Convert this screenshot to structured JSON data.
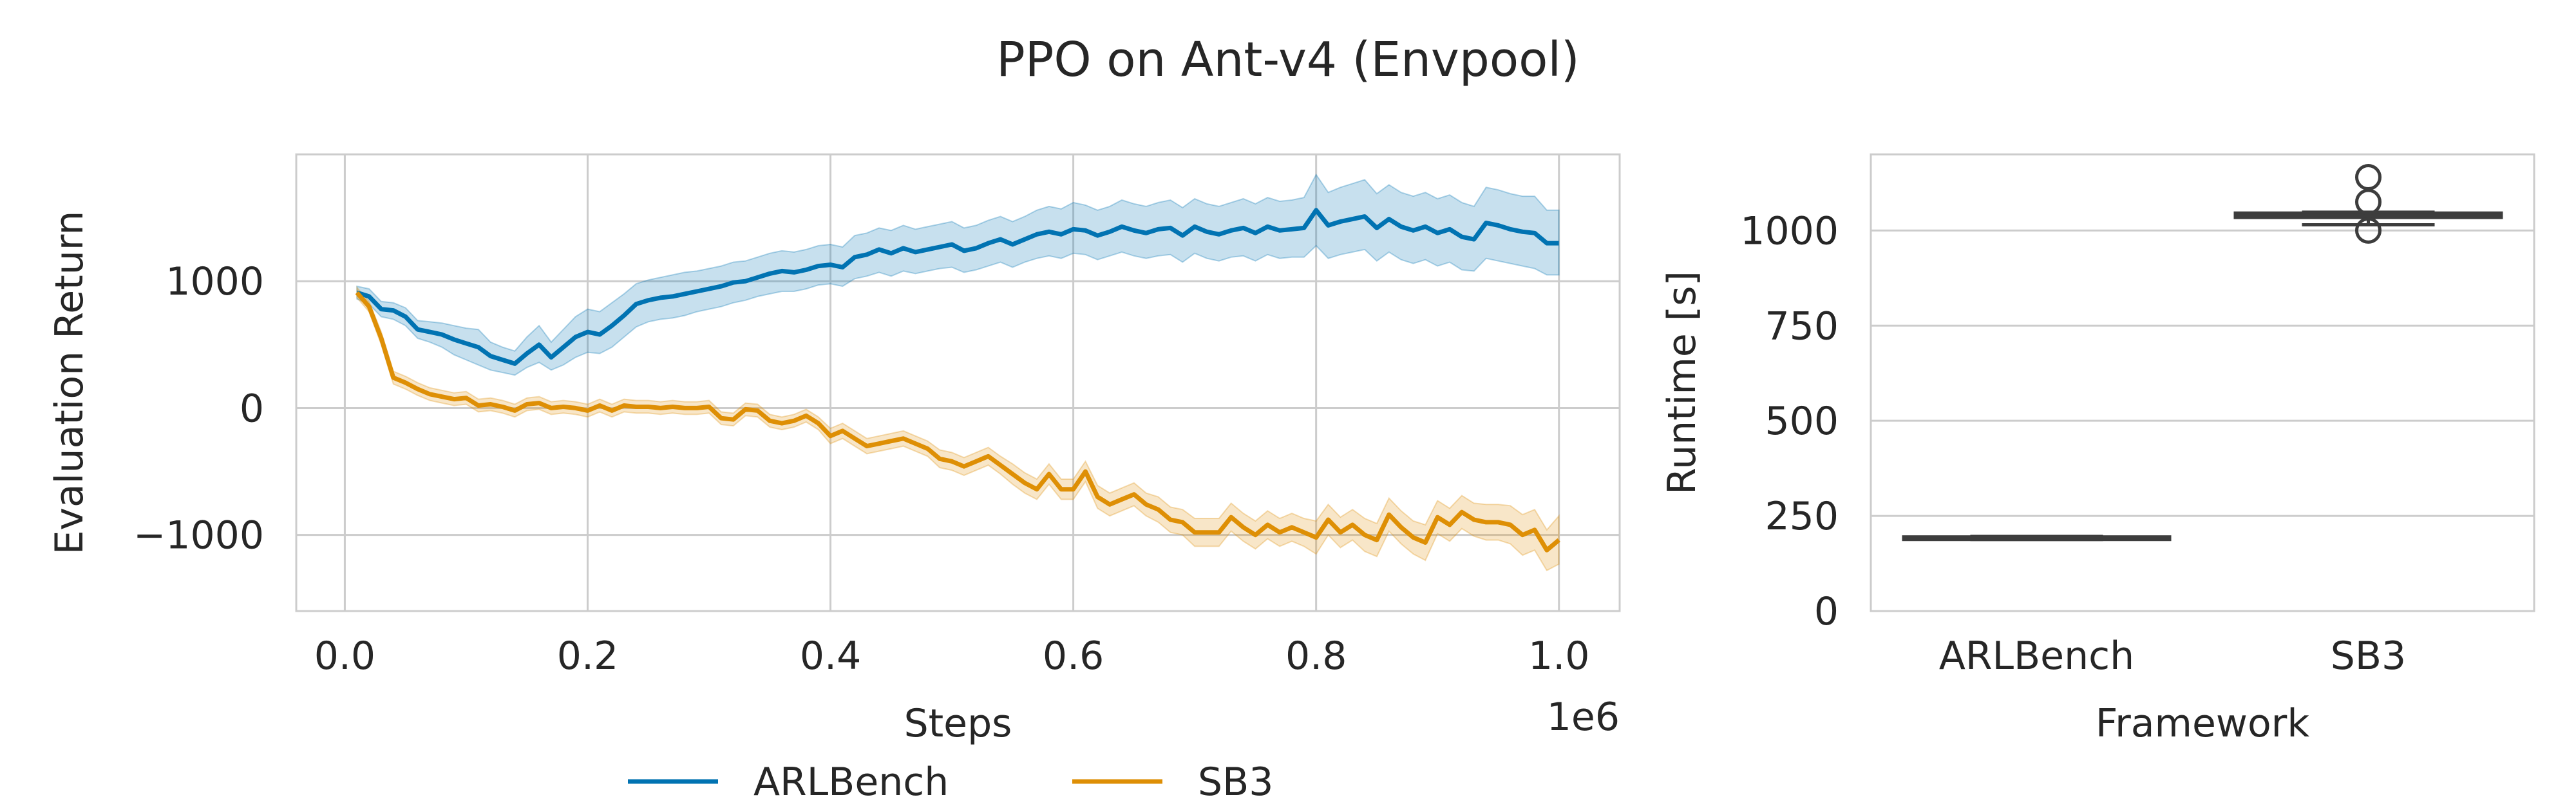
{
  "title": "PPO on Ant-v4 (Envpool)",
  "colors": {
    "ARLBench": "#0173b2",
    "SB3": "#de8f05",
    "grid": "#cccccc",
    "spine": "#cccccc",
    "box": "#3d3d3d"
  },
  "legend": {
    "placement": "bottom-center",
    "entries": [
      "ARLBench",
      "SB3"
    ]
  },
  "chart_data": [
    {
      "type": "line",
      "xlabel": "Steps",
      "x_offset_label": "1e6",
      "ylabel": "Evaluation Return",
      "xlim": [
        -0.04,
        1.05
      ],
      "ylim": [
        -1600,
        2000
      ],
      "xticks": [
        0.0,
        0.2,
        0.4,
        0.6,
        0.8,
        1.0
      ],
      "xtick_labels": [
        "0.0",
        "0.2",
        "0.4",
        "0.6",
        "0.8",
        "1.0"
      ],
      "yticks": [
        -1000,
        0,
        1000
      ],
      "ytick_labels": [
        "−1000",
        "0",
        "1000"
      ],
      "grid": true,
      "x": [
        0.01,
        0.02,
        0.03,
        0.04,
        0.05,
        0.06,
        0.07,
        0.08,
        0.09,
        0.1,
        0.11,
        0.12,
        0.13,
        0.14,
        0.15,
        0.16,
        0.17,
        0.18,
        0.19,
        0.2,
        0.21,
        0.22,
        0.23,
        0.24,
        0.25,
        0.26,
        0.27,
        0.28,
        0.29,
        0.3,
        0.31,
        0.32,
        0.33,
        0.34,
        0.35,
        0.36,
        0.37,
        0.38,
        0.39,
        0.4,
        0.41,
        0.42,
        0.43,
        0.44,
        0.45,
        0.46,
        0.47,
        0.48,
        0.49,
        0.5,
        0.51,
        0.52,
        0.53,
        0.54,
        0.55,
        0.56,
        0.57,
        0.58,
        0.59,
        0.6,
        0.61,
        0.62,
        0.63,
        0.64,
        0.65,
        0.66,
        0.67,
        0.68,
        0.69,
        0.7,
        0.71,
        0.72,
        0.73,
        0.74,
        0.75,
        0.76,
        0.77,
        0.78,
        0.79,
        0.8,
        0.81,
        0.82,
        0.83,
        0.84,
        0.85,
        0.86,
        0.87,
        0.88,
        0.89,
        0.9,
        0.91,
        0.92,
        0.93,
        0.94,
        0.95,
        0.96,
        0.97,
        0.98,
        0.99,
        1.0
      ],
      "series": [
        {
          "name": "ARLBench",
          "values": [
            910,
            880,
            780,
            770,
            720,
            620,
            600,
            580,
            540,
            510,
            480,
            410,
            380,
            350,
            430,
            500,
            400,
            480,
            560,
            600,
            580,
            650,
            730,
            820,
            850,
            870,
            880,
            900,
            920,
            940,
            960,
            990,
            1000,
            1030,
            1060,
            1080,
            1070,
            1090,
            1120,
            1130,
            1110,
            1190,
            1210,
            1250,
            1220,
            1260,
            1230,
            1250,
            1270,
            1290,
            1240,
            1260,
            1300,
            1330,
            1290,
            1330,
            1370,
            1390,
            1370,
            1410,
            1400,
            1360,
            1390,
            1430,
            1400,
            1380,
            1410,
            1420,
            1360,
            1430,
            1390,
            1370,
            1400,
            1420,
            1380,
            1430,
            1400,
            1410,
            1420,
            1560,
            1440,
            1470,
            1490,
            1510,
            1420,
            1490,
            1430,
            1400,
            1430,
            1380,
            1410,
            1350,
            1330,
            1460,
            1440,
            1410,
            1390,
            1380,
            1300,
            1300
          ],
          "lower": [
            860,
            820,
            720,
            700,
            650,
            550,
            520,
            480,
            420,
            380,
            340,
            300,
            280,
            260,
            320,
            360,
            300,
            340,
            400,
            440,
            430,
            480,
            560,
            640,
            680,
            700,
            710,
            730,
            760,
            780,
            800,
            830,
            850,
            880,
            900,
            920,
            920,
            940,
            970,
            980,
            960,
            1020,
            1040,
            1070,
            1040,
            1080,
            1060,
            1080,
            1100,
            1110,
            1070,
            1090,
            1120,
            1150,
            1110,
            1150,
            1180,
            1200,
            1180,
            1220,
            1210,
            1170,
            1200,
            1230,
            1200,
            1180,
            1200,
            1210,
            1150,
            1220,
            1180,
            1160,
            1190,
            1200,
            1160,
            1210,
            1180,
            1190,
            1190,
            1280,
            1180,
            1210,
            1230,
            1250,
            1160,
            1230,
            1170,
            1140,
            1170,
            1120,
            1150,
            1090,
            1080,
            1180,
            1160,
            1140,
            1120,
            1100,
            1050,
            1050
          ],
          "upper": [
            960,
            940,
            840,
            830,
            790,
            690,
            680,
            670,
            650,
            630,
            620,
            520,
            480,
            450,
            560,
            650,
            520,
            620,
            720,
            780,
            760,
            830,
            900,
            980,
            1010,
            1030,
            1050,
            1070,
            1080,
            1100,
            1120,
            1150,
            1160,
            1190,
            1220,
            1240,
            1230,
            1250,
            1280,
            1290,
            1270,
            1360,
            1380,
            1420,
            1400,
            1440,
            1410,
            1430,
            1450,
            1470,
            1420,
            1440,
            1480,
            1510,
            1470,
            1510,
            1560,
            1590,
            1570,
            1620,
            1600,
            1560,
            1590,
            1640,
            1610,
            1590,
            1620,
            1640,
            1580,
            1650,
            1610,
            1590,
            1620,
            1650,
            1610,
            1660,
            1630,
            1640,
            1660,
            1840,
            1700,
            1740,
            1770,
            1800,
            1690,
            1760,
            1700,
            1670,
            1700,
            1650,
            1680,
            1620,
            1590,
            1740,
            1720,
            1690,
            1670,
            1670,
            1560,
            1560
          ]
        },
        {
          "name": "SB3",
          "values": [
            910,
            800,
            550,
            240,
            200,
            150,
            110,
            90,
            70,
            80,
            20,
            30,
            10,
            -20,
            30,
            40,
            0,
            10,
            0,
            -20,
            20,
            -20,
            20,
            10,
            10,
            0,
            10,
            0,
            0,
            10,
            -80,
            -90,
            -10,
            -20,
            -100,
            -120,
            -100,
            -60,
            -120,
            -220,
            -180,
            -240,
            -300,
            -280,
            -260,
            -240,
            -280,
            -320,
            -400,
            -420,
            -460,
            -420,
            -380,
            -450,
            -520,
            -590,
            -640,
            -520,
            -640,
            -640,
            -500,
            -700,
            -760,
            -720,
            -680,
            -760,
            -800,
            -880,
            -900,
            -980,
            -980,
            -980,
            -860,
            -940,
            -1000,
            -920,
            -980,
            -940,
            -980,
            -1020,
            -880,
            -980,
            -920,
            -1000,
            -1040,
            -840,
            -940,
            -1020,
            -1060,
            -860,
            -920,
            -820,
            -880,
            -900,
            -900,
            -920,
            -1000,
            -960,
            -1120,
            -1040
          ],
          "lower": [
            870,
            760,
            500,
            190,
            150,
            100,
            60,
            40,
            20,
            30,
            -30,
            -20,
            -40,
            -70,
            -20,
            -10,
            -50,
            -40,
            -50,
            -70,
            -30,
            -70,
            -30,
            -40,
            -40,
            -50,
            -40,
            -50,
            -50,
            -40,
            -130,
            -140,
            -60,
            -70,
            -150,
            -170,
            -150,
            -110,
            -170,
            -280,
            -240,
            -300,
            -360,
            -340,
            -320,
            -300,
            -340,
            -380,
            -470,
            -490,
            -530,
            -490,
            -450,
            -520,
            -600,
            -670,
            -720,
            -600,
            -720,
            -720,
            -580,
            -790,
            -850,
            -810,
            -770,
            -850,
            -900,
            -980,
            -1000,
            -1090,
            -1090,
            -1090,
            -970,
            -1050,
            -1110,
            -1030,
            -1090,
            -1050,
            -1090,
            -1150,
            -1000,
            -1100,
            -1040,
            -1130,
            -1170,
            -970,
            -1070,
            -1150,
            -1200,
            -990,
            -1050,
            -950,
            -1010,
            -1040,
            -1040,
            -1070,
            -1160,
            -1120,
            -1280,
            -1230
          ],
          "upper": [
            950,
            840,
            600,
            290,
            250,
            200,
            160,
            140,
            120,
            130,
            70,
            80,
            60,
            30,
            80,
            90,
            50,
            60,
            50,
            30,
            70,
            30,
            70,
            60,
            60,
            50,
            60,
            50,
            50,
            60,
            -30,
            -40,
            40,
            30,
            -50,
            -70,
            -50,
            -10,
            -70,
            -160,
            -120,
            -180,
            -240,
            -220,
            -200,
            -180,
            -220,
            -260,
            -330,
            -350,
            -390,
            -350,
            -310,
            -380,
            -440,
            -510,
            -560,
            -440,
            -560,
            -560,
            -420,
            -610,
            -670,
            -630,
            -590,
            -670,
            -700,
            -780,
            -800,
            -870,
            -870,
            -870,
            -750,
            -830,
            -890,
            -810,
            -870,
            -830,
            -870,
            -890,
            -760,
            -860,
            -800,
            -870,
            -910,
            -710,
            -810,
            -890,
            -920,
            -730,
            -790,
            -690,
            -750,
            -760,
            -760,
            -770,
            -840,
            -800,
            -960,
            -850
          ]
        }
      ]
    },
    {
      "type": "box",
      "xlabel": "Framework",
      "ylabel": "Runtime [s]",
      "ylim": [
        0,
        1200
      ],
      "yticks": [
        0,
        250,
        500,
        750,
        1000
      ],
      "ytick_labels": [
        "0",
        "250",
        "500",
        "750",
        "1000"
      ],
      "grid": true,
      "categories": [
        "ARLBench",
        "SB3"
      ],
      "boxes": [
        {
          "category": "ARLBench",
          "min": 188,
          "q1": 190,
          "median": 192,
          "q3": 194,
          "max": 196,
          "outliers": []
        },
        {
          "category": "SB3",
          "min": 1015,
          "q1": 1035,
          "median": 1040,
          "q3": 1045,
          "max": 1048,
          "outliers": [
            1000,
            1075,
            1140
          ]
        }
      ]
    }
  ]
}
